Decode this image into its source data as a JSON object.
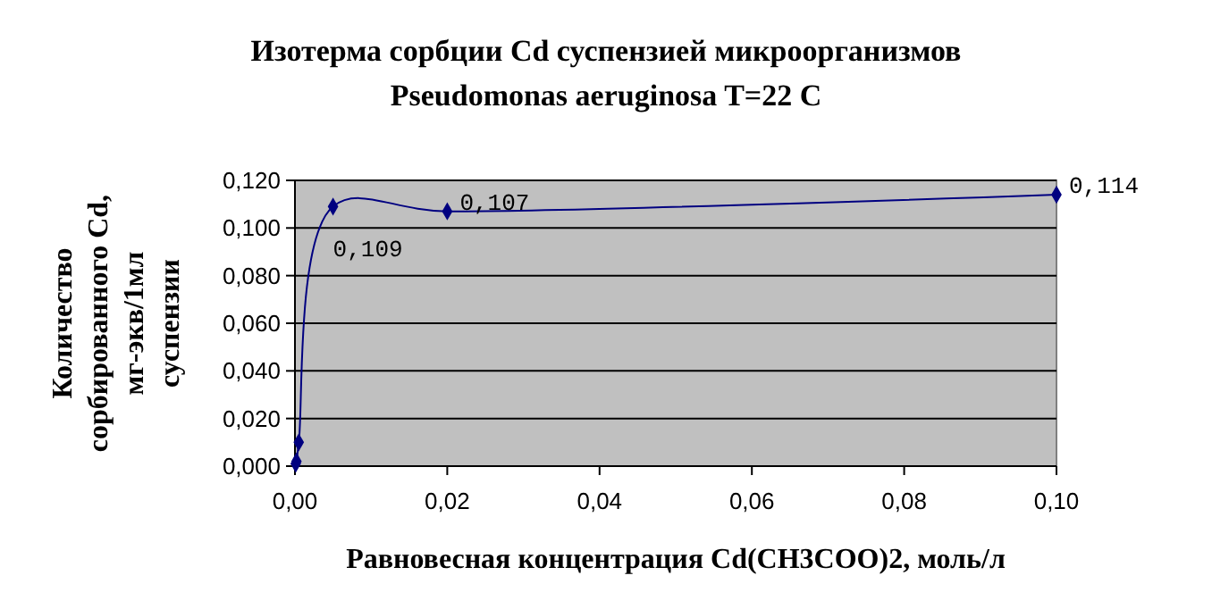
{
  "chart_data": {
    "type": "line",
    "title": "Изотерма сорбции Cd суспензией микроорганизмов Pseudomonas aeruginosa T=22 C",
    "xlabel": "Равновесная концентрация Cd(CH3COO)2, моль/л",
    "ylabel": "Количество сорбированного Cd, мг-экв/1мл суспензии",
    "x": [
      0.0001,
      0.0002,
      0.0005,
      0.005,
      0.02,
      0.1
    ],
    "series": [
      {
        "color": "#000080",
        "values": [
          0.001,
          0.002,
          0.01,
          0.109,
          0.107,
          0.114
        ],
        "value_labels": [
          null,
          null,
          null,
          "0,109",
          "0,107",
          "0,114"
        ]
      }
    ],
    "xlim": [
      0,
      0.1
    ],
    "xticks": [
      {
        "value": 0,
        "label": "0,00"
      },
      {
        "value": 0.02,
        "label": "0,02"
      },
      {
        "value": 0.04,
        "label": "0,04"
      },
      {
        "value": 0.06,
        "label": "0,06"
      },
      {
        "value": 0.08,
        "label": "0,08"
      },
      {
        "value": 0.1,
        "label": "0,10"
      }
    ],
    "ylim": [
      0,
      0.12
    ],
    "yticks": [
      {
        "value": 0,
        "label": "0,000"
      },
      {
        "value": 0.02,
        "label": "0,020"
      },
      {
        "value": 0.04,
        "label": "0,040"
      },
      {
        "value": 0.06,
        "label": "0,060"
      },
      {
        "value": 0.08,
        "label": "0,080"
      },
      {
        "value": 0.1,
        "label": "0,100"
      },
      {
        "value": 0.12,
        "label": "0,120"
      }
    ],
    "grid": "y",
    "marker": "diamond",
    "line_style": "solid"
  }
}
